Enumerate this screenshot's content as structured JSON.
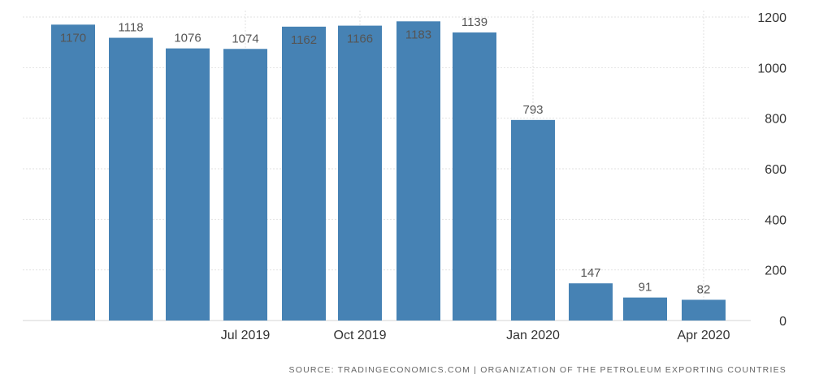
{
  "chart_data": {
    "type": "bar",
    "categories": [
      "Apr 2019",
      "May 2019",
      "Jun 2019",
      "Jul 2019",
      "Aug 2019",
      "Sep 2019",
      "Oct 2019",
      "Nov 2019",
      "Dec 2019",
      "Jan 2020",
      "Feb 2020",
      "Mar 2020",
      "Apr 2020"
    ],
    "values": [
      1170,
      1118,
      1076,
      1074,
      null,
      1162,
      1166,
      1183,
      1139,
      793,
      147,
      91,
      82
    ],
    "data_labels": [
      "1170",
      "1118",
      "1076",
      "1074",
      "",
      "1162",
      "1166",
      "1183",
      "1139",
      "793",
      "147",
      "91",
      "82"
    ],
    "x_tick_labels": [
      {
        "category": "Jul 2019",
        "label": "Jul 2019"
      },
      {
        "category": "Oct 2019",
        "label": "Oct 2019"
      },
      {
        "category": "Jan 2020",
        "label": "Jan 2020"
      },
      {
        "category": "Apr 2020",
        "label": "Apr 2020"
      }
    ],
    "y_ticks": [
      0,
      200,
      400,
      600,
      800,
      1000,
      1200
    ],
    "ylim": [
      0,
      1200
    ],
    "y_axis_side": "right",
    "grid": true,
    "bar_color": "#4682b4",
    "title": "",
    "xlabel": "",
    "ylabel": ""
  },
  "footer": {
    "source": "SOURCE: TRADINGECONOMICS.COM  |  ORGANIZATION OF THE PETROLEUM EXPORTING COUNTRIES"
  }
}
